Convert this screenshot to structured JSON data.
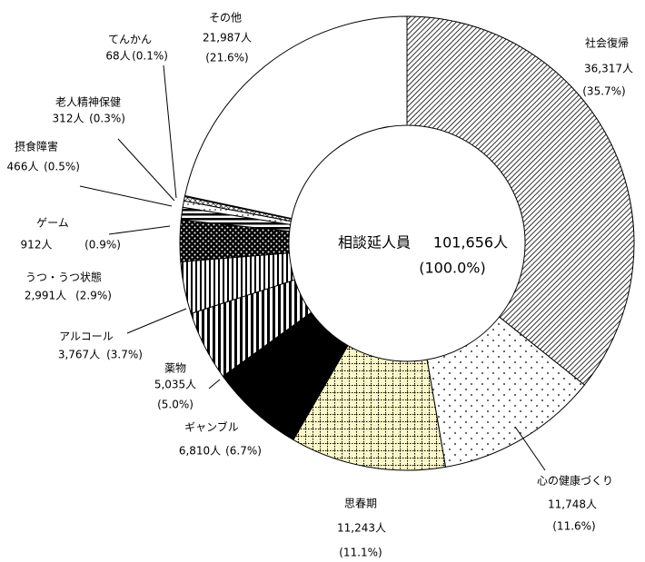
{
  "chart_data": {
    "type": "donut",
    "categories": [
      "社会復帰",
      "心の健康づくり",
      "思春期",
      "ギャンブル",
      "薬物",
      "アルコール",
      "うつ・うつ状態",
      "ゲーム",
      "摂食障害",
      "老人精神保健",
      "てんかん",
      "その他"
    ],
    "values": [
      36317,
      11748,
      11243,
      6810,
      5035,
      3767,
      2991,
      912,
      466,
      312,
      68,
      21987
    ],
    "value_labels": [
      "36,317人",
      "11,748人",
      "11,243人",
      "6,810人",
      "5,035人",
      "3,767人",
      "2,991人",
      "912人",
      "466人",
      "312人",
      "68人",
      "21,987人"
    ],
    "percents": [
      35.7,
      11.6,
      11.1,
      6.7,
      5.0,
      3.7,
      2.9,
      0.9,
      0.5,
      0.3,
      0.1,
      21.6
    ],
    "percent_labels": [
      "(35.7%)",
      "(11.6%)",
      "(11.1%)",
      "(6.7%)",
      "(5.0%)",
      "(3.7%)",
      "(2.9%)",
      "(0.9%)",
      "(0.5%)",
      "(0.3%)",
      "(0.1%)",
      "(21.6%)"
    ],
    "patterns": [
      "diagonal",
      "dots",
      "grid-yellow",
      "solid-black",
      "vertical",
      "vertical-thin",
      "dots-dark",
      "horizontal",
      "dots-light",
      "crosshatch",
      "crosshatch-fine",
      "none"
    ],
    "center_title": "相談延人員",
    "total_label": "101,656人",
    "total_percent_label": "(100.0%)"
  }
}
